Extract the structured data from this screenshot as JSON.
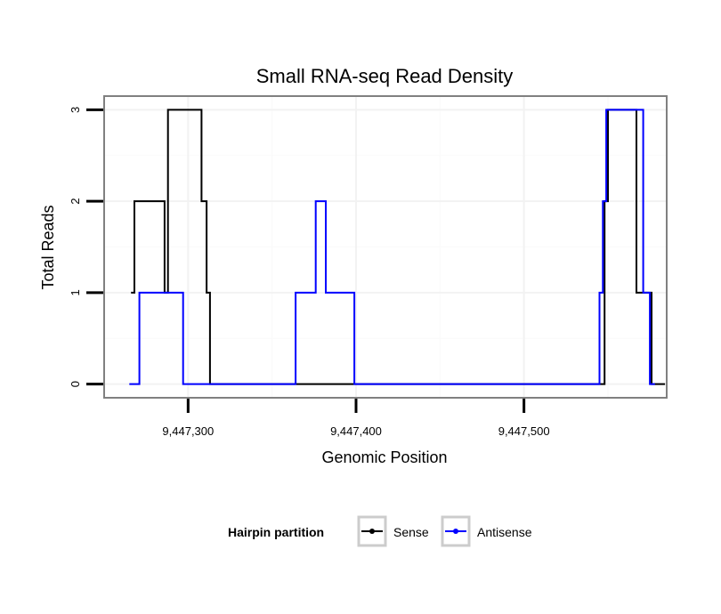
{
  "chart_data": {
    "type": "line",
    "title": "Small RNA-seq Read Density",
    "xlabel": "Genomic Position",
    "ylabel": "Total Reads",
    "xlim": [
      9447250,
      9447585
    ],
    "ylim": [
      -0.15,
      3.15
    ],
    "x_ticks": [
      9447300,
      9447400,
      9447500
    ],
    "x_tick_labels": [
      "9,447,300",
      "9,447,400",
      "9,447,500"
    ],
    "y_ticks": [
      0,
      1,
      2,
      3
    ],
    "y_tick_labels": [
      "0",
      "1",
      "2",
      "3"
    ],
    "legend": {
      "title": "Hairpin partition",
      "position": "bottom",
      "entries": [
        "Sense",
        "Antisense"
      ]
    },
    "series": [
      {
        "name": "Sense",
        "color": "#000000",
        "x": [
          9447266,
          9447268,
          9447268,
          9447286,
          9447286,
          9447288,
          9447288,
          9447308,
          9447308,
          9447311,
          9447311,
          9447313,
          9447313,
          9447547,
          9447547,
          9447548,
          9447548,
          9447550,
          9447550,
          9447552,
          9447552,
          9447567,
          9447567,
          9447576,
          9447576,
          9447578,
          9447578,
          9447584
        ],
        "y": [
          1,
          1,
          2,
          2,
          1,
          1,
          3,
          3,
          2,
          2,
          1,
          1,
          0,
          0,
          0,
          0,
          2,
          2,
          3,
          3,
          3,
          3,
          1,
          1,
          0,
          0,
          0,
          0
        ]
      },
      {
        "name": "Antisense",
        "color": "#0000ff",
        "x": [
          9447265,
          9447271,
          9447271,
          9447297,
          9447297,
          9447364,
          9447364,
          9447376,
          9447376,
          9447382,
          9447382,
          9447399,
          9447399,
          9447545,
          9447545,
          9447547,
          9447547,
          9447549,
          9447549,
          9447551,
          9447551,
          9447571,
          9447571,
          9447575,
          9447575,
          9447578
        ],
        "y": [
          0,
          0,
          1,
          1,
          0,
          0,
          1,
          1,
          2,
          2,
          1,
          1,
          0,
          0,
          1,
          1,
          2,
          2,
          3,
          3,
          3,
          3,
          1,
          1,
          0,
          0
        ]
      }
    ]
  }
}
